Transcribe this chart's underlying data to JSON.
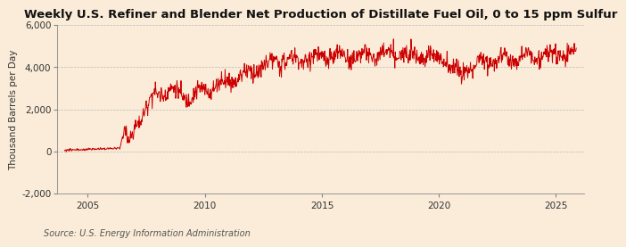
{
  "title": "Weekly U.S. Refiner and Blender Net Production of Distillate Fuel Oil, 0 to 15 ppm Sulfur",
  "ylabel": "Thousand Barrels per Day",
  "source": "Source: U.S. Energy Information Administration",
  "background_color": "#faecd8",
  "plot_bg_color": "#faecd8",
  "line_color": "#cc0000",
  "title_fontsize": 9.5,
  "title_fontweight": "bold",
  "ylabel_fontsize": 7.5,
  "tick_fontsize": 7.5,
  "source_fontsize": 7.0,
  "ylim": [
    -2000,
    6000
  ],
  "yticks": [
    -2000,
    0,
    2000,
    4000,
    6000
  ],
  "xlim_start": 2003.7,
  "xlim_end": 2026.2,
  "xticks": [
    2005,
    2010,
    2015,
    2020,
    2025
  ],
  "grid_color": "#bbbbbb",
  "grid_linestyle": "--",
  "grid_linewidth": 0.5,
  "line_linewidth": 0.7
}
